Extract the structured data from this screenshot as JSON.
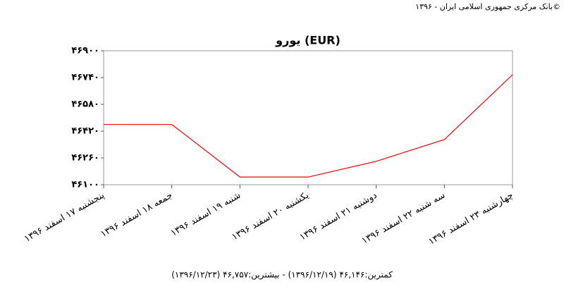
{
  "chart_data": {
    "type": "line",
    "source": "بانک مرکزی جمهوری اسلامی ایران - ۱۳۹۶©",
    "title": "یورو (EUR)",
    "categories": [
      "پنجشنبه ۱۷ اسفند ۱۳۹۶",
      "جمعه ۱۸ اسفند ۱۳۹۶",
      "شنبه ۱۹ اسفند ۱۳۹۶",
      "یکشنبه ۲۰ اسفند ۱۳۹۶",
      "دوشنبه ۲۱ اسفند ۱۳۹۶",
      "سه شنبه ۲۲ اسفند ۱۳۹۶",
      "چهارشنبه ۲۳ اسفند ۱۳۹۶"
    ],
    "values": [
      46460,
      46460,
      46146,
      46146,
      46240,
      46370,
      46757
    ],
    "color": "#e8191e",
    "ylim": [
      46100,
      46900
    ],
    "yticks": [
      {
        "value": 46100,
        "label": "۴۶۱۰۰"
      },
      {
        "value": 46260,
        "label": "۴۶۲۶۰"
      },
      {
        "value": 46420,
        "label": "۴۶۴۲۰"
      },
      {
        "value": 46580,
        "label": "۴۶۵۸۰"
      },
      {
        "value": 46740,
        "label": "۴۶۷۴۰"
      },
      {
        "value": 46900,
        "label": "۴۶۹۰۰"
      }
    ],
    "footer": "کمترین:۴۶,۱۴۶ (۱۳۹۶/۱۲/۱۹) - بیشترین:۴۶,۷۵۷ (۱۳۹۶/۱۲/۲۳)"
  }
}
